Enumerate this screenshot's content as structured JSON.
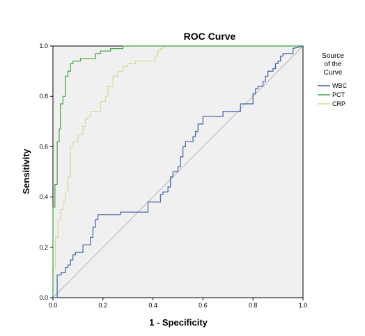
{
  "chart_data": {
    "type": "line",
    "title": "ROC Curve",
    "xlabel": "1 - Specificity",
    "ylabel": "Sensitivity",
    "xlim": [
      0.0,
      1.0
    ],
    "ylim": [
      0.0,
      1.0
    ],
    "x_ticks": [
      "0.0",
      "0.2",
      "0.4",
      "0.6",
      "0.8",
      "1.0"
    ],
    "y_ticks": [
      "0.0",
      "0.2",
      "0.4",
      "0.6",
      "0.8",
      "1.0"
    ],
    "grid": false,
    "legend": {
      "title_lines": [
        "Source",
        "of the",
        "Curve"
      ],
      "placement": "right"
    },
    "series": [
      {
        "name": "WBC",
        "color": "#3f5fa8",
        "x": [
          0.0,
          0.017,
          0.017,
          0.033,
          0.033,
          0.05,
          0.05,
          0.06,
          0.06,
          0.07,
          0.07,
          0.08,
          0.08,
          0.09,
          0.09,
          0.12,
          0.12,
          0.15,
          0.15,
          0.16,
          0.16,
          0.17,
          0.17,
          0.18,
          0.18,
          0.27,
          0.27,
          0.38,
          0.38,
          0.43,
          0.43,
          0.44,
          0.44,
          0.46,
          0.46,
          0.47,
          0.47,
          0.48,
          0.48,
          0.5,
          0.5,
          0.51,
          0.51,
          0.52,
          0.52,
          0.53,
          0.53,
          0.56,
          0.56,
          0.57,
          0.57,
          0.58,
          0.58,
          0.6,
          0.6,
          0.68,
          0.68,
          0.75,
          0.75,
          0.8,
          0.8,
          0.81,
          0.81,
          0.82,
          0.82,
          0.84,
          0.84,
          0.85,
          0.85,
          0.86,
          0.86,
          0.88,
          0.88,
          0.89,
          0.89,
          0.9,
          0.9,
          0.91,
          0.91,
          0.92,
          0.92,
          0.96,
          0.96,
          1.0
        ],
        "y": [
          0.0,
          0.0,
          0.09,
          0.09,
          0.1,
          0.1,
          0.12,
          0.12,
          0.13,
          0.13,
          0.15,
          0.15,
          0.17,
          0.17,
          0.18,
          0.18,
          0.21,
          0.21,
          0.24,
          0.24,
          0.28,
          0.28,
          0.31,
          0.31,
          0.33,
          0.33,
          0.34,
          0.34,
          0.38,
          0.38,
          0.41,
          0.41,
          0.42,
          0.42,
          0.44,
          0.44,
          0.48,
          0.48,
          0.5,
          0.5,
          0.52,
          0.52,
          0.56,
          0.56,
          0.6,
          0.6,
          0.62,
          0.62,
          0.64,
          0.64,
          0.66,
          0.66,
          0.69,
          0.69,
          0.72,
          0.72,
          0.74,
          0.74,
          0.77,
          0.77,
          0.81,
          0.81,
          0.83,
          0.83,
          0.84,
          0.84,
          0.86,
          0.86,
          0.88,
          0.88,
          0.9,
          0.9,
          0.91,
          0.91,
          0.93,
          0.93,
          0.94,
          0.94,
          0.96,
          0.96,
          0.97,
          0.97,
          0.99,
          1.0
        ]
      },
      {
        "name": "PCT",
        "color": "#3aa841",
        "x": [
          0.0,
          0.0,
          0.008,
          0.008,
          0.017,
          0.017,
          0.025,
          0.025,
          0.03,
          0.03,
          0.04,
          0.04,
          0.05,
          0.05,
          0.06,
          0.06,
          0.07,
          0.07,
          0.08,
          0.08,
          0.11,
          0.11,
          0.17,
          0.17,
          0.19,
          0.19,
          0.23,
          0.23,
          0.28,
          0.28,
          1.0
        ],
        "y": [
          0.0,
          0.36,
          0.36,
          0.45,
          0.45,
          0.62,
          0.62,
          0.67,
          0.67,
          0.77,
          0.77,
          0.8,
          0.8,
          0.88,
          0.88,
          0.9,
          0.9,
          0.93,
          0.93,
          0.94,
          0.94,
          0.95,
          0.95,
          0.97,
          0.97,
          0.98,
          0.98,
          0.99,
          0.99,
          1.0,
          1.0
        ]
      },
      {
        "name": "CRP",
        "color": "#d8d89a",
        "x": [
          0.0,
          0.0,
          0.01,
          0.01,
          0.02,
          0.02,
          0.03,
          0.03,
          0.04,
          0.04,
          0.05,
          0.05,
          0.06,
          0.06,
          0.07,
          0.07,
          0.08,
          0.08,
          0.1,
          0.1,
          0.12,
          0.12,
          0.13,
          0.13,
          0.14,
          0.14,
          0.15,
          0.15,
          0.19,
          0.19,
          0.21,
          0.21,
          0.22,
          0.22,
          0.24,
          0.24,
          0.26,
          0.26,
          0.28,
          0.28,
          0.3,
          0.3,
          0.33,
          0.33,
          0.41,
          0.41,
          0.42,
          0.42,
          0.43,
          0.43,
          0.44,
          0.44,
          1.0
        ],
        "y": [
          0.0,
          0.12,
          0.12,
          0.24,
          0.24,
          0.31,
          0.31,
          0.35,
          0.35,
          0.38,
          0.38,
          0.42,
          0.42,
          0.48,
          0.48,
          0.6,
          0.6,
          0.62,
          0.62,
          0.65,
          0.65,
          0.68,
          0.68,
          0.71,
          0.71,
          0.72,
          0.72,
          0.74,
          0.74,
          0.78,
          0.78,
          0.8,
          0.8,
          0.84,
          0.84,
          0.88,
          0.88,
          0.9,
          0.9,
          0.92,
          0.92,
          0.93,
          0.93,
          0.94,
          0.94,
          0.96,
          0.96,
          0.98,
          0.98,
          0.99,
          0.99,
          1.0,
          1.0
        ]
      }
    ]
  }
}
